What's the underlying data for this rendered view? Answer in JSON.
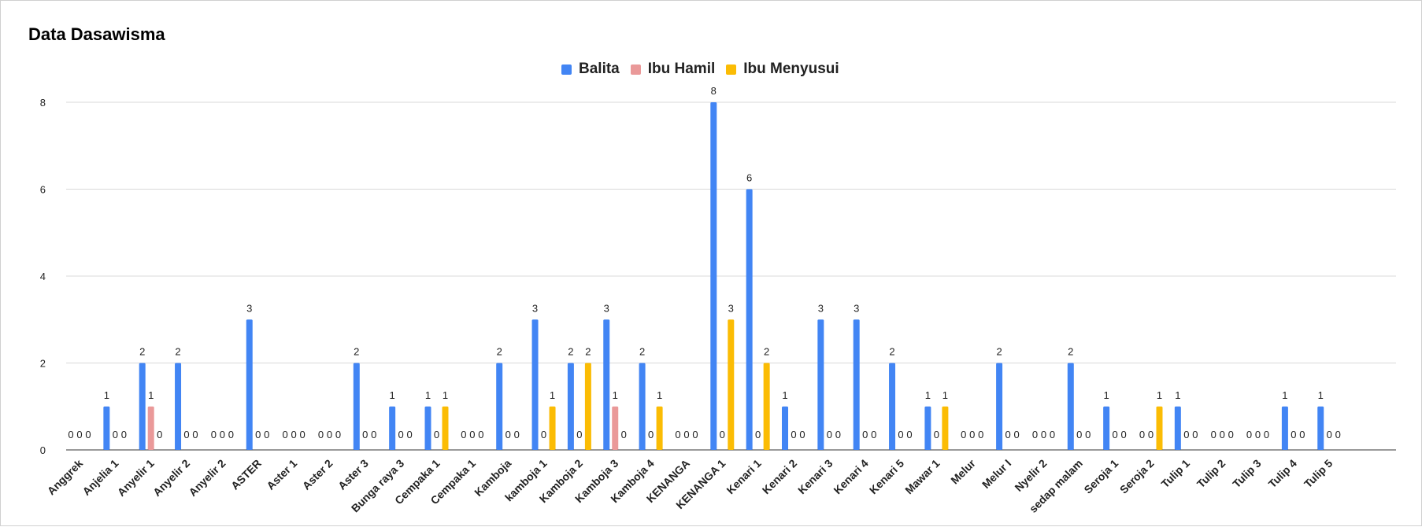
{
  "chart_data": {
    "type": "bar",
    "title": "Data Dasawisma",
    "xlabel": "",
    "ylabel": "",
    "ylim": [
      0,
      8
    ],
    "yticks": [
      0,
      2,
      4,
      6,
      8
    ],
    "ytick_labels": [
      "0",
      "2",
      "4",
      "6",
      "8"
    ],
    "grid": true,
    "legend_position": "top",
    "categories": [
      "Anggrek",
      "Anjelia 1",
      "Anyelir 1",
      "Anyelir 2",
      "Anyelir 2",
      "ASTER",
      "Aster 1",
      "Aster 2",
      "Aster 3",
      "Bunga raya 3",
      "Cempaka 1",
      "Cempaka 1",
      "Kamboja",
      "kamboja 1",
      "Kamboja 2",
      "Kamboja 3",
      "Kamboja 4",
      "KENANGA",
      "KENANGA 1",
      "Kenari 1",
      "Kenari 2",
      "Kenari 3",
      "Kenari 4",
      "Kenari 5",
      "Mawar 1",
      "Melur",
      "Melur I",
      "Nyelir 2",
      "sedap malam",
      "Seroja 1",
      "Seroja 2",
      "Tulip 1",
      "Tulip 2",
      "Tulip 3",
      "Tulip 4",
      "Tulip 5"
    ],
    "series": [
      {
        "name": "Balita",
        "color": "#4285f4",
        "values": [
          0,
          1,
          2,
          2,
          0,
          3,
          0,
          0,
          2,
          1,
          1,
          0,
          2,
          3,
          2,
          3,
          2,
          0,
          8,
          6,
          1,
          3,
          3,
          2,
          1,
          0,
          2,
          0,
          2,
          1,
          0,
          1,
          0,
          0,
          1,
          1
        ]
      },
      {
        "name": "Ibu Hamil",
        "color": "#ea9999",
        "values": [
          0,
          0,
          1,
          0,
          0,
          0,
          0,
          0,
          0,
          0,
          0,
          0,
          0,
          0,
          0,
          1,
          0,
          0,
          0,
          0,
          0,
          0,
          0,
          0,
          0,
          0,
          0,
          0,
          0,
          0,
          0,
          0,
          0,
          0,
          0,
          0
        ]
      },
      {
        "name": "Ibu Menyusui",
        "color": "#fbbc04",
        "values": [
          0,
          0,
          0,
          0,
          0,
          0,
          0,
          0,
          0,
          0,
          1,
          0,
          0,
          1,
          2,
          0,
          1,
          0,
          3,
          2,
          0,
          0,
          0,
          0,
          1,
          0,
          0,
          0,
          0,
          0,
          1,
          0,
          0,
          0,
          0,
          0
        ]
      }
    ]
  }
}
